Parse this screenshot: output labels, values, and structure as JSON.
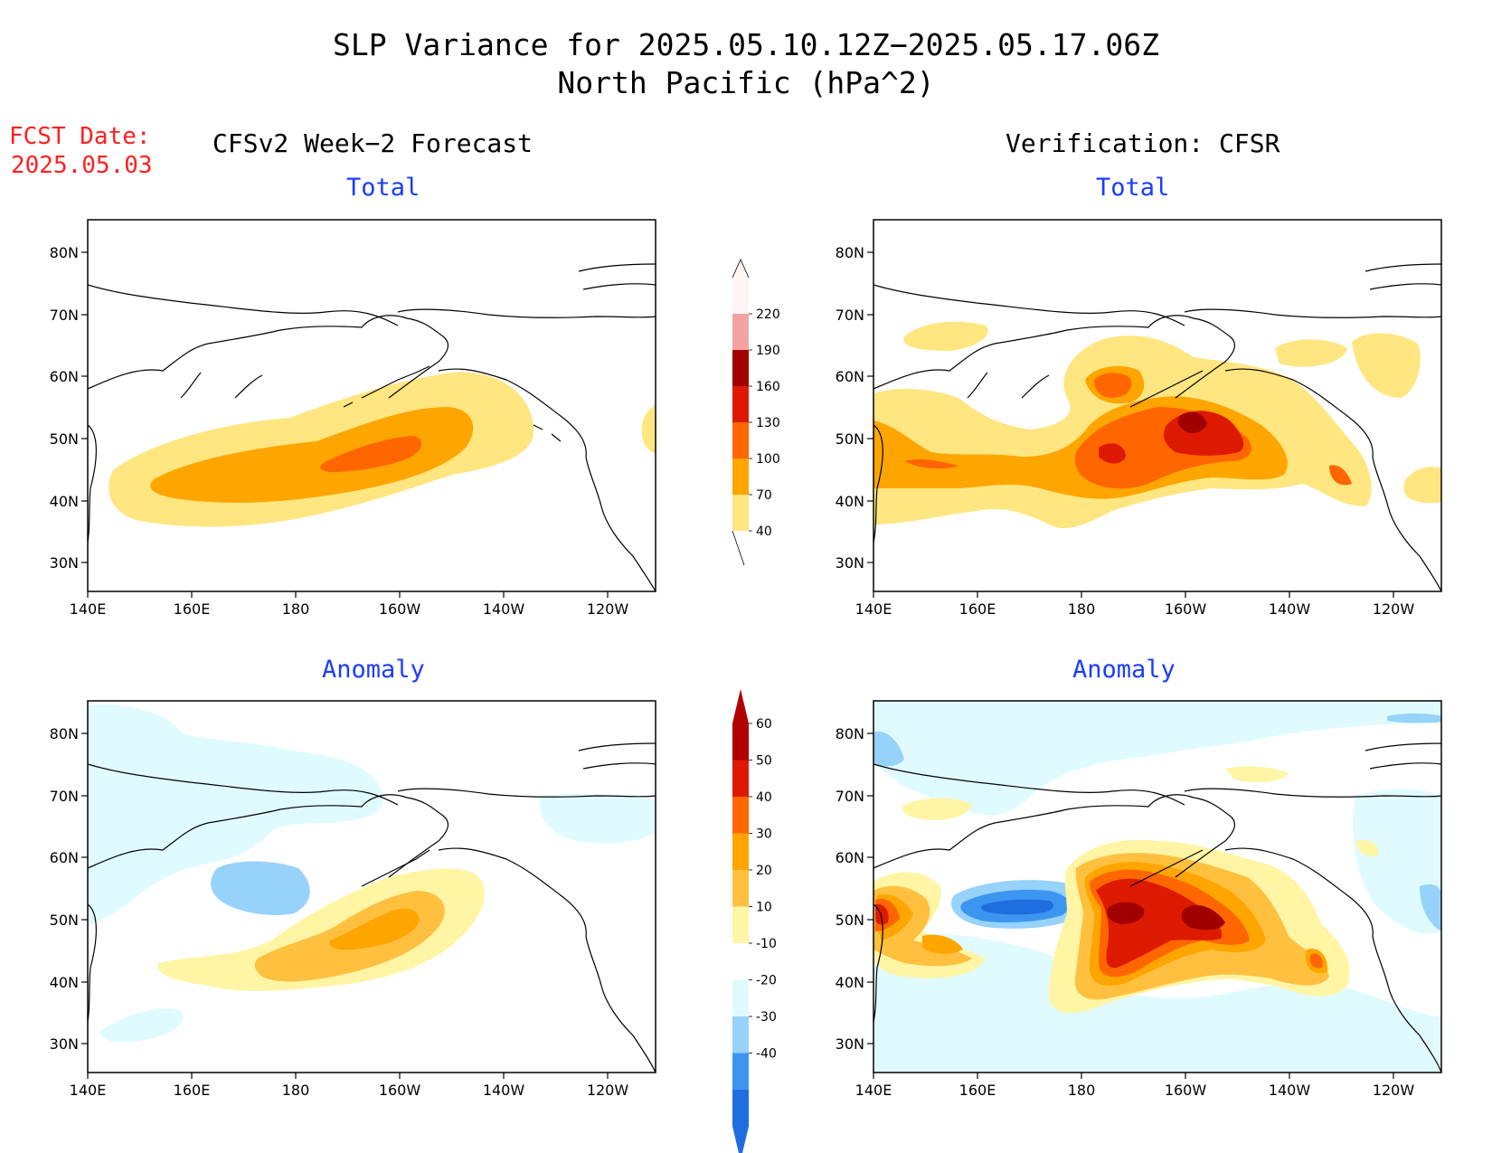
{
  "title": {
    "line1": "SLP Variance for 2025.05.10.12Z−2025.05.17.06Z",
    "line2": "North Pacific (hPa^2)"
  },
  "fcst_date": {
    "label": "FCST Date:",
    "value": "2025.05.03"
  },
  "columns": {
    "left": "CFSv2 Week−2 Forecast",
    "right": "Verification: CFSR"
  },
  "subtitles": {
    "total": "Total",
    "anomaly": "Anomaly"
  },
  "axes": {
    "lon_ticks": [
      "140E",
      "160E",
      "180",
      "160W",
      "140W",
      "120W"
    ],
    "lat_ticks": [
      "80N",
      "70N",
      "60N",
      "50N",
      "40N",
      "30N"
    ]
  },
  "colorbars": {
    "total": {
      "labels": [
        "40",
        "70",
        "100",
        "130",
        "160",
        "190",
        "220"
      ],
      "colors": [
        "#fff5f5",
        "#f4a3a3",
        "#a00000",
        "#dd1a00",
        "#ff6600",
        "#ffa500",
        "#ffe680"
      ]
    },
    "anomaly": {
      "labels": [
        "60",
        "50",
        "40",
        "30",
        "20",
        "10",
        "-10",
        "-20",
        "-30",
        "-40"
      ],
      "colors": [
        "#b00000",
        "#dd1a00",
        "#ff6600",
        "#ffa500",
        "#ffc040",
        "#fff5a5",
        "#ffffff",
        "#e0fbff",
        "#96d2fa",
        "#3c96f0",
        "#1e6ee0"
      ]
    }
  },
  "chart_data": [
    {
      "type": "map",
      "panel": "CFSv2 Week-2 Forecast",
      "subtitle": "Total",
      "units": "hPa^2",
      "levels": [
        40,
        70,
        100,
        130,
        160,
        190,
        220
      ],
      "max_approx": 115,
      "max_location": "45N 165W"
    },
    {
      "type": "map",
      "panel": "Verification: CFSR",
      "subtitle": "Total",
      "units": "hPa^2",
      "levels": [
        40,
        70,
        100,
        130,
        160,
        190,
        220
      ],
      "max_approx": 165,
      "max_location": "52N 158W"
    },
    {
      "type": "map",
      "panel": "CFSv2 Week-2 Forecast",
      "subtitle": "Anomaly",
      "units": "hPa^2",
      "levels": [
        -40,
        -30,
        -20,
        -10,
        10,
        20,
        30,
        40,
        50,
        60
      ],
      "max_approx": 35,
      "min_approx": -25
    },
    {
      "type": "map",
      "panel": "Verification: CFSR",
      "subtitle": "Anomaly",
      "units": "hPa^2",
      "levels": [
        -40,
        -30,
        -20,
        -10,
        10,
        20,
        30,
        40,
        50,
        60
      ],
      "max_approx": 65,
      "min_approx": -40
    }
  ]
}
